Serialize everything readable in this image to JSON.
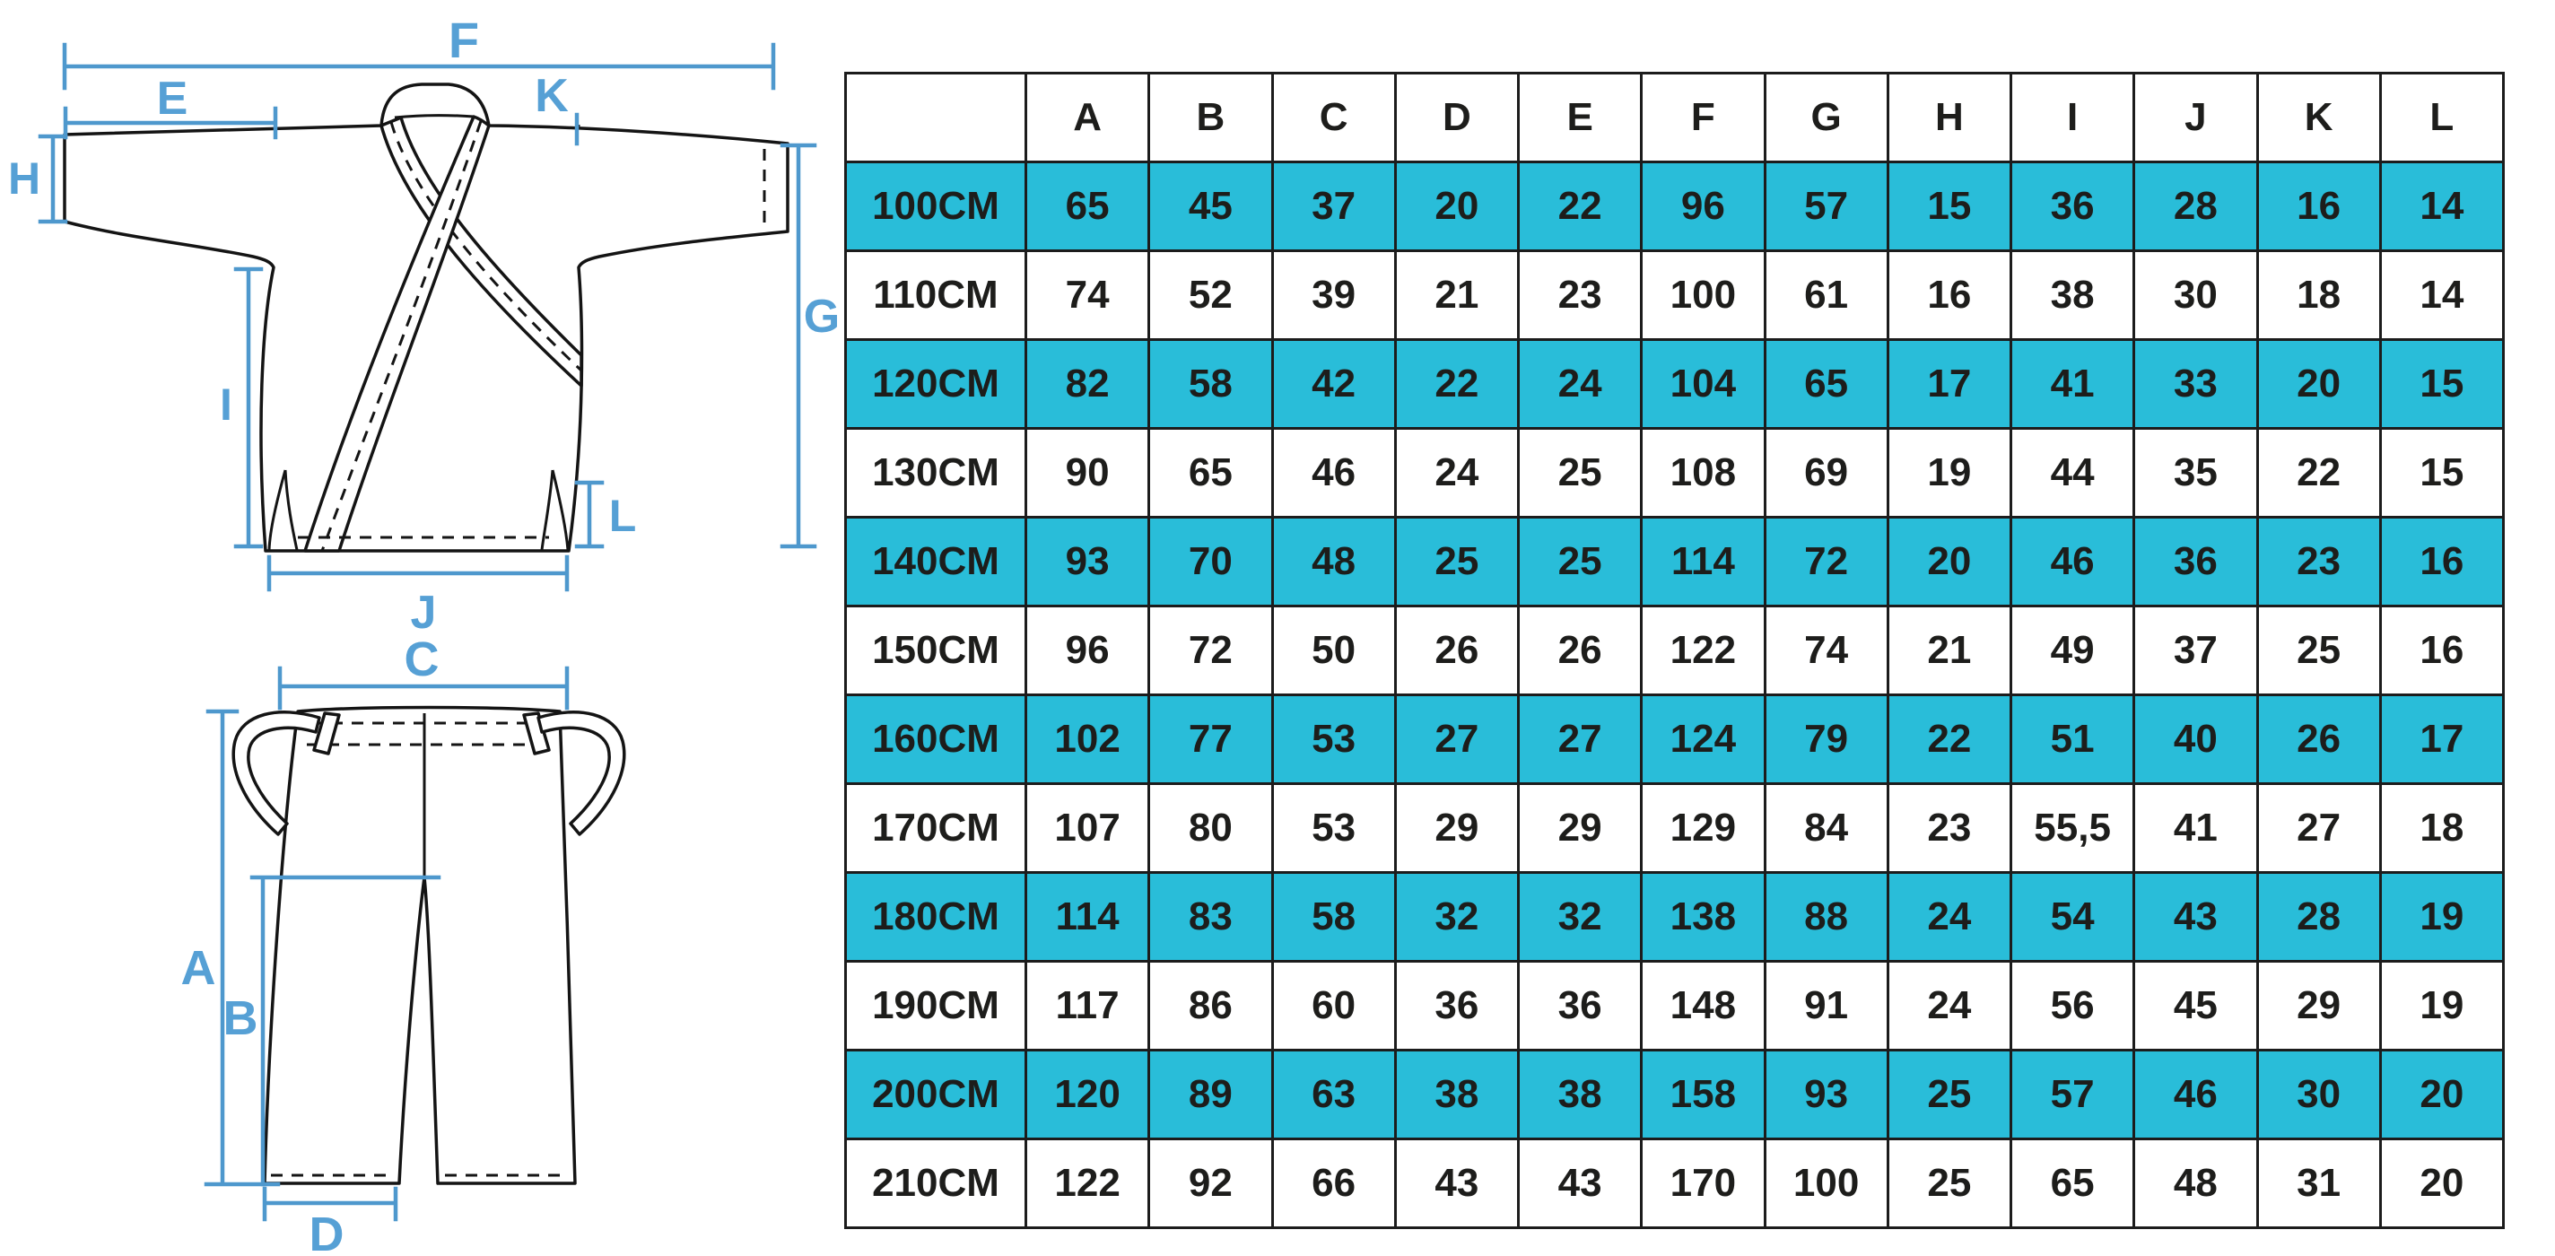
{
  "colors": {
    "row_highlight": "#29bdd9",
    "dimension_line": "#4e98cd",
    "dimension_label": "#56a0d5",
    "table_border": "#1c1c1c",
    "text": "#1d1d1b",
    "background": "#ffffff"
  },
  "dimension_labels": {
    "A": "A",
    "B": "B",
    "C": "C",
    "D": "D",
    "E": "E",
    "F": "F",
    "G": "G",
    "H": "H",
    "I": "I",
    "J": "J",
    "K": "K",
    "L": "L"
  },
  "table": {
    "corner_label": "",
    "columns": [
      "A",
      "B",
      "C",
      "D",
      "E",
      "F",
      "G",
      "H",
      "I",
      "J",
      "K",
      "L"
    ],
    "rows": [
      {
        "size": "100CM",
        "highlight": true,
        "values": [
          65,
          45,
          37,
          20,
          22,
          96,
          57,
          15,
          36,
          28,
          16,
          14
        ]
      },
      {
        "size": "110CM",
        "highlight": false,
        "values": [
          74,
          52,
          39,
          21,
          23,
          100,
          61,
          16,
          38,
          30,
          18,
          14
        ]
      },
      {
        "size": "120CM",
        "highlight": true,
        "values": [
          82,
          58,
          42,
          22,
          24,
          104,
          65,
          17,
          41,
          33,
          20,
          15
        ]
      },
      {
        "size": "130CM",
        "highlight": false,
        "values": [
          90,
          65,
          46,
          24,
          25,
          108,
          69,
          19,
          44,
          35,
          22,
          15
        ]
      },
      {
        "size": "140CM",
        "highlight": true,
        "values": [
          93,
          70,
          48,
          25,
          25,
          114,
          72,
          20,
          46,
          36,
          23,
          16
        ]
      },
      {
        "size": "150CM",
        "highlight": false,
        "values": [
          96,
          72,
          50,
          26,
          26,
          122,
          74,
          21,
          49,
          37,
          25,
          16
        ]
      },
      {
        "size": "160CM",
        "highlight": true,
        "values": [
          102,
          77,
          53,
          27,
          27,
          124,
          79,
          22,
          51,
          40,
          26,
          17
        ]
      },
      {
        "size": "170CM",
        "highlight": false,
        "values": [
          107,
          80,
          53,
          29,
          29,
          129,
          84,
          23,
          "55,5",
          41,
          27,
          18
        ]
      },
      {
        "size": "180CM",
        "highlight": true,
        "values": [
          114,
          83,
          58,
          32,
          32,
          138,
          88,
          24,
          54,
          43,
          28,
          19
        ]
      },
      {
        "size": "190CM",
        "highlight": false,
        "values": [
          117,
          86,
          60,
          36,
          36,
          148,
          91,
          24,
          56,
          45,
          29,
          19
        ]
      },
      {
        "size": "200CM",
        "highlight": true,
        "values": [
          120,
          89,
          63,
          38,
          38,
          158,
          93,
          25,
          57,
          46,
          30,
          20
        ]
      },
      {
        "size": "210CM",
        "highlight": false,
        "values": [
          122,
          92,
          66,
          43,
          43,
          170,
          100,
          25,
          65,
          48,
          31,
          20
        ]
      }
    ]
  },
  "chart_data": {
    "type": "table",
    "title": "Uniform size chart (jacket and pants measurements by height)",
    "columns": [
      "A",
      "B",
      "C",
      "D",
      "E",
      "F",
      "G",
      "H",
      "I",
      "J",
      "K",
      "L"
    ],
    "row_labels": [
      "100CM",
      "110CM",
      "120CM",
      "130CM",
      "140CM",
      "150CM",
      "160CM",
      "170CM",
      "180CM",
      "190CM",
      "200CM",
      "210CM"
    ],
    "rows": [
      [
        65,
        45,
        37,
        20,
        22,
        96,
        57,
        15,
        36,
        28,
        16,
        14
      ],
      [
        74,
        52,
        39,
        21,
        23,
        100,
        61,
        16,
        38,
        30,
        18,
        14
      ],
      [
        82,
        58,
        42,
        22,
        24,
        104,
        65,
        17,
        41,
        33,
        20,
        15
      ],
      [
        90,
        65,
        46,
        24,
        25,
        108,
        69,
        19,
        44,
        35,
        22,
        15
      ],
      [
        93,
        70,
        48,
        25,
        25,
        114,
        72,
        20,
        46,
        36,
        23,
        16
      ],
      [
        96,
        72,
        50,
        26,
        26,
        122,
        74,
        21,
        49,
        37,
        25,
        16
      ],
      [
        102,
        77,
        53,
        27,
        27,
        124,
        79,
        22,
        51,
        40,
        26,
        17
      ],
      [
        107,
        80,
        53,
        29,
        29,
        129,
        84,
        23,
        "55,5",
        41,
        27,
        18
      ],
      [
        114,
        83,
        58,
        32,
        32,
        138,
        88,
        24,
        54,
        43,
        28,
        19
      ],
      [
        117,
        86,
        60,
        36,
        36,
        148,
        91,
        24,
        56,
        45,
        29,
        19
      ],
      [
        120,
        89,
        63,
        38,
        38,
        158,
        93,
        25,
        57,
        46,
        30,
        20
      ],
      [
        122,
        92,
        66,
        43,
        43,
        170,
        100,
        25,
        65,
        48,
        31,
        20
      ]
    ]
  }
}
